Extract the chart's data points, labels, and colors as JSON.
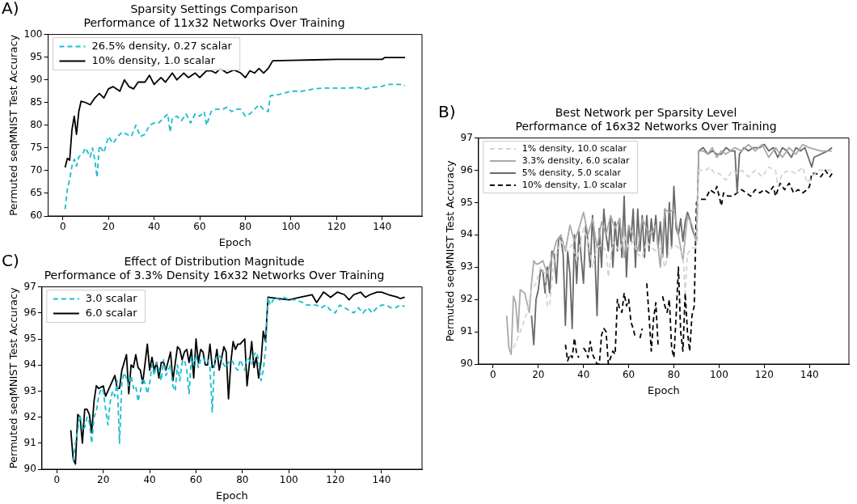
{
  "chart_data": [
    {
      "type": "line",
      "title": "Sparsity Settings Comparison",
      "subtitle": "Performance of 11x32 Networks Over Training",
      "xlabel": "Epoch",
      "ylabel": "Permuted seqMNIST Test Accuracy",
      "annotations": [
        "A)"
      ],
      "xlim": [
        -6.45,
        157.45
      ],
      "xticks": [
        0,
        20,
        40,
        60,
        80,
        100,
        120,
        140
      ],
      "ylim": [
        60,
        100
      ],
      "yticks": [
        60,
        65,
        70,
        75,
        80,
        85,
        90,
        95,
        100
      ],
      "grid": false,
      "legend": "top left",
      "series": [
        {
          "name": "26.5% density, 0.27 scalar",
          "color": "#17becf",
          "line_style": "dashed",
          "x": [
            1,
            2,
            3,
            4,
            5,
            6,
            7,
            9,
            10,
            12,
            13,
            14,
            15,
            16,
            18,
            20,
            22,
            24,
            26,
            28,
            30,
            32,
            34,
            36,
            38,
            40,
            42,
            44,
            46,
            47,
            48,
            50,
            52,
            54,
            56,
            58,
            60,
            62,
            63,
            65,
            67,
            70,
            72,
            74,
            76,
            78,
            80,
            82,
            84,
            86,
            88,
            90,
            91,
            95,
            100,
            105,
            110,
            115,
            120,
            125,
            130,
            132,
            135,
            140,
            142,
            148,
            150
          ],
          "values": [
            61.5,
            66,
            68,
            71,
            72.5,
            71,
            73,
            74,
            75,
            73,
            75,
            72.5,
            68.5,
            75.5,
            74,
            77.5,
            76,
            77.5,
            78.5,
            78,
            77.5,
            80,
            77.5,
            78,
            80,
            80.5,
            80.5,
            81.5,
            82.5,
            78.5,
            81.5,
            82,
            81,
            82.5,
            80.5,
            82.5,
            82,
            83,
            80,
            83,
            83.5,
            83.5,
            84,
            83,
            83.5,
            83.5,
            82,
            82.5,
            83.5,
            84.5,
            83.5,
            83,
            86.5,
            86.8,
            87.5,
            87.5,
            88,
            88.2,
            88.2,
            88.2,
            88.3,
            87.9,
            88.3,
            88.6,
            89,
            89,
            88.7
          ]
        },
        {
          "name": "10% density, 1.0 scalar",
          "color": "#000000",
          "line_style": "solid",
          "x": [
            1,
            2,
            3,
            4,
            5,
            6,
            7,
            8,
            10,
            12,
            14,
            16,
            18,
            20,
            22,
            25,
            27,
            29,
            31,
            33,
            36,
            38,
            40,
            43,
            45,
            48,
            50,
            53,
            55,
            58,
            60,
            63,
            65,
            67,
            69,
            72,
            75,
            78,
            80,
            82,
            84,
            86,
            88,
            90,
            92,
            100,
            110,
            120,
            130,
            140,
            141,
            150
          ],
          "values": [
            70.7,
            72.7,
            72.3,
            79,
            82,
            78,
            83,
            85.3,
            85,
            84.5,
            86,
            87,
            86,
            88,
            88.5,
            87.5,
            90,
            88.5,
            88,
            89.5,
            89.5,
            91,
            89,
            90.5,
            89.5,
            91.5,
            90,
            91.5,
            90.5,
            91.5,
            90.5,
            92,
            92,
            91.5,
            92.5,
            91.5,
            92.2,
            91.5,
            90.5,
            92,
            91.5,
            92.5,
            91.5,
            92.5,
            94.2,
            94.3,
            94.4,
            94.5,
            94.5,
            94.5,
            94.9,
            94.9
          ]
        }
      ]
    },
    {
      "type": "line",
      "title": "Best Network per Sparsity Level",
      "subtitle": "Performance of 16x32 Networks Over Training",
      "xlabel": "Epoch",
      "ylabel": "Permuted seqMNIST Test Accuracy",
      "annotations": [
        "B)"
      ],
      "xlim": [
        -6.45,
        157.45
      ],
      "xticks": [
        0,
        20,
        40,
        60,
        80,
        100,
        120,
        140
      ],
      "ylim": [
        90,
        97
      ],
      "yticks": [
        90,
        91,
        92,
        93,
        94,
        95,
        96,
        97
      ],
      "grid": false,
      "legend": "top left",
      "series": [
        {
          "name": "1% density, 10.0 scalar",
          "color": "#d3d3d3",
          "line_style": "dashed",
          "x": [
            9,
            12,
            15,
            17,
            19,
            21,
            23,
            24,
            25,
            27,
            30,
            33,
            35,
            37,
            40,
            42,
            44,
            46,
            48,
            50,
            51,
            53,
            56,
            58,
            60,
            62,
            64,
            66,
            68,
            70,
            72,
            74,
            76,
            78,
            80,
            82,
            84,
            85,
            86,
            88,
            90,
            91,
            94,
            96,
            98,
            100,
            103,
            106,
            108,
            110,
            113,
            116,
            119,
            122,
            125,
            126,
            128,
            131,
            134,
            137,
            139,
            141,
            144,
            147,
            150
          ],
          "values": [
            90.5,
            91,
            91.6,
            92.3,
            92.5,
            93,
            92.8,
            91.8,
            91.8,
            93.2,
            93.8,
            93.5,
            93.7,
            93.2,
            94.2,
            93.8,
            93,
            93.6,
            93.7,
            93.5,
            92.7,
            93.8,
            93.5,
            94,
            93.6,
            93.8,
            93.4,
            93.3,
            93.8,
            93.6,
            93.5,
            93.6,
            93,
            93.5,
            93.7,
            93.6,
            93.4,
            92.2,
            93.4,
            93.6,
            93.6,
            96,
            96,
            96.1,
            95.9,
            95.9,
            95.7,
            96,
            95.9,
            96,
            95.8,
            96,
            95.8,
            96.1,
            96,
            95.5,
            95.9,
            96,
            95.9,
            96.1,
            95.6,
            95.8,
            96,
            96,
            96
          ]
        },
        {
          "name": "3.3% density, 6.0 scalar",
          "color": "#a9a9a9",
          "line_style": "solid",
          "x": [
            6,
            7,
            8,
            9,
            10,
            11,
            12,
            14,
            15,
            16,
            17,
            18,
            19,
            20,
            22,
            24,
            26,
            28,
            30,
            32,
            34,
            36,
            38,
            40,
            42,
            44,
            46,
            48,
            50,
            52,
            54,
            56,
            58,
            60,
            62,
            64,
            66,
            68,
            70,
            72,
            74,
            76,
            78,
            80,
            82,
            84,
            86,
            88,
            90,
            91,
            93,
            95,
            97,
            99,
            101,
            103,
            105,
            107,
            110,
            113,
            116,
            119,
            122,
            125,
            128,
            131,
            134,
            137,
            140,
            145,
            150
          ],
          "values": [
            91.5,
            90.5,
            90.3,
            92.1,
            91.9,
            91,
            92.3,
            92.2,
            91.9,
            91.6,
            92.5,
            93.2,
            93.1,
            93.1,
            93.2,
            92.8,
            93.3,
            93.8,
            94,
            93.5,
            94.3,
            93.8,
            94.2,
            94.7,
            94,
            94.5,
            93.6,
            94.4,
            94,
            94.6,
            94.2,
            94.5,
            93.3,
            94.3,
            94,
            93.5,
            94.5,
            94.2,
            94,
            94.3,
            93,
            94.8,
            94.7,
            94.8,
            94,
            93.2,
            94.6,
            94.3,
            93.8,
            96.6,
            96.6,
            96.5,
            96.7,
            96.4,
            96.6,
            96.5,
            96.6,
            96.7,
            96.6,
            96.8,
            96.6,
            96.8,
            96.4,
            96.7,
            96.4,
            96.7,
            96.5,
            96.8,
            96.7,
            96.6,
            96.6
          ]
        },
        {
          "name": "5% density, 5.0 scalar",
          "color": "#696969",
          "line_style": "solid",
          "x": [
            17,
            18,
            19,
            20,
            21,
            22,
            23,
            24,
            25,
            26,
            27,
            28,
            29,
            30,
            31,
            32,
            33,
            34,
            35,
            36,
            37,
            38,
            40,
            41,
            42,
            43,
            44,
            45,
            46,
            47,
            48,
            49,
            50,
            51,
            52,
            53,
            54,
            55,
            56,
            57,
            58,
            59,
            60,
            61,
            62,
            63,
            64,
            65,
            66,
            67,
            68,
            69,
            70,
            71,
            72,
            73,
            74,
            75,
            76,
            77,
            78,
            79,
            80,
            81,
            82,
            83,
            84,
            85,
            86,
            87,
            88,
            90,
            91,
            93,
            95,
            97,
            99,
            101,
            103,
            105,
            107,
            108,
            109,
            111,
            113,
            115,
            118,
            120,
            122,
            124,
            126,
            128,
            130,
            132,
            134,
            136,
            138,
            140,
            141,
            142,
            145,
            148,
            150
          ],
          "values": [
            91.5,
            90.6,
            92,
            92.3,
            92.9,
            92.9,
            92.2,
            93,
            92.2,
            93.5,
            93.4,
            92.5,
            93.9,
            93.9,
            93.4,
            91.2,
            93.5,
            92.8,
            91.1,
            94,
            92.5,
            94.1,
            92.5,
            94.3,
            93.8,
            93,
            94.6,
            93.5,
            91.5,
            94.2,
            93,
            94.8,
            94,
            93.5,
            94.5,
            93,
            94.4,
            93.5,
            94.5,
            93.3,
            95.2,
            92.7,
            94.2,
            93.8,
            94.8,
            93,
            94.8,
            93.5,
            94.6,
            93.3,
            94.6,
            93.5,
            94.5,
            93.8,
            94.6,
            93.6,
            94.4,
            93.3,
            94.8,
            93.3,
            95,
            93.6,
            95.5,
            94.2,
            94,
            94.5,
            93.8,
            94.4,
            94.7,
            94.5,
            94.2,
            93.8,
            96.6,
            96.7,
            96.5,
            96.6,
            96.5,
            96.5,
            96.7,
            96.6,
            96.6,
            95.3,
            96.5,
            96.7,
            96.6,
            96.7,
            96.7,
            96.8,
            96.6,
            96.7,
            96.4,
            96.7,
            96.6,
            96.4,
            96.7,
            96.6,
            96.7,
            96.3,
            96.1,
            96.4,
            96.5,
            96.6,
            96.7
          ]
        },
        {
          "name": "10% density, 1.0 scalar",
          "color": "#000000",
          "line_style": "dashed",
          "x": [
            32,
            33,
            34,
            35,
            36,
            37,
            38,
            39,
            40,
            41,
            42,
            43,
            44,
            46,
            47,
            48,
            49,
            50,
            51,
            53,
            54,
            55,
            56,
            57,
            58,
            59,
            60,
            61,
            62,
            63,
            64,
            65,
            66,
            67,
            68,
            69,
            70,
            71,
            72,
            73,
            74,
            75,
            76,
            77,
            78,
            79,
            80,
            81,
            82,
            83,
            84,
            85,
            86,
            87,
            88,
            89,
            90,
            92,
            94,
            96,
            98,
            99,
            100,
            101,
            102,
            104,
            106,
            108,
            110,
            112,
            114,
            116,
            118,
            120,
            122,
            124,
            125,
            127,
            129,
            131,
            133,
            135,
            137,
            139,
            140,
            141,
            143,
            145,
            147,
            149,
            150
          ],
          "values": [
            90.6,
            90.1,
            90.3,
            90.2,
            90.8,
            90.3,
            90.2,
            null,
            90.5,
            90.4,
            90.2,
            90.7,
            90.3,
            90,
            90,
            90.9,
            91.1,
            91,
            90,
            90.4,
            90.3,
            92,
            91.7,
            91.6,
            92.2,
            91.8,
            92,
            91.3,
            91.1,
            90.8,
            null,
            90.8,
            91.1,
            null,
            92.5,
            91.5,
            90.4,
            91.4,
            91.9,
            90.6,
            null,
            92.1,
            91.8,
            91.6,
            92,
            90.5,
            90.2,
            91.5,
            93,
            91,
            90.4,
            92.2,
            91,
            90.4,
            91.5,
            91.8,
            95,
            95.1,
            95.1,
            95.4,
            95.3,
            95.5,
            95.2,
            94.9,
            95.3,
            95.2,
            95.2,
            95.3,
            95.4,
            95.3,
            95.2,
            95.4,
            95.3,
            95.4,
            95.3,
            95.5,
            95.2,
            95.6,
            95.4,
            95.6,
            95.3,
            95.4,
            95.3,
            95.4,
            95.5,
            95.9,
            95.9,
            95.8,
            96,
            95.8,
            95.9
          ]
        }
      ]
    },
    {
      "type": "line",
      "title": "Effect of Distribution Magnitude",
      "subtitle": "Performance of 3.3% Density 16x32 Networks Over Training",
      "xlabel": "Epoch",
      "ylabel": "Permuted seqMNIST Test Accuracy",
      "annotations": [
        "C)"
      ],
      "xlim": [
        -6.45,
        157.45
      ],
      "xticks": [
        0,
        20,
        40,
        60,
        80,
        100,
        120,
        140
      ],
      "ylim": [
        90,
        97
      ],
      "yticks": [
        90,
        91,
        92,
        93,
        94,
        95,
        96,
        97
      ],
      "grid": false,
      "legend": "top left",
      "series": [
        {
          "name": "3.0 scalar",
          "color": "#17becf",
          "line_style": "dashed",
          "x": [
            7,
            8,
            9,
            10,
            11,
            12,
            13,
            14,
            15,
            16,
            17,
            18,
            19,
            20,
            21,
            22,
            23,
            24,
            25,
            26,
            27,
            28,
            29,
            30,
            31,
            32,
            33,
            34,
            35,
            36,
            37,
            38,
            39,
            40,
            41,
            42,
            43,
            44,
            45,
            46,
            47,
            48,
            49,
            50,
            51,
            52,
            53,
            54,
            55,
            56,
            57,
            58,
            59,
            60,
            61,
            62,
            63,
            64,
            65,
            66,
            67,
            68,
            69,
            70,
            71,
            72,
            73,
            74,
            75,
            76,
            77,
            78,
            79,
            80,
            81,
            82,
            83,
            84,
            85,
            86,
            87,
            88,
            89,
            90,
            91,
            92,
            94,
            96,
            98,
            100,
            103,
            106,
            108,
            110,
            112,
            114,
            116,
            118,
            120,
            122,
            124,
            126,
            128,
            130,
            132,
            134,
            136,
            138,
            140,
            142,
            144,
            146,
            148,
            150
          ],
          "values": [
            90.3,
            91,
            91.5,
            92.1,
            91.5,
            91.6,
            92,
            91.8,
            91,
            92,
            92.2,
            92.8,
            93.1,
            93,
            92.3,
            91.7,
            92.6,
            93,
            92.8,
            93.4,
            91,
            93.3,
            93.7,
            93.5,
            93.2,
            93.6,
            93.1,
            93.2,
            92.6,
            93,
            93.5,
            93.3,
            92.9,
            93.3,
            94,
            93.6,
            94.1,
            93.8,
            93.4,
            94.2,
            93.6,
            93.8,
            94,
            93.2,
            93,
            94,
            93.4,
            94.1,
            94.2,
            93.8,
            92.9,
            94.3,
            94,
            94.4,
            93.9,
            94.2,
            94.3,
            94.1,
            94.2,
            93.9,
            92.2,
            94.2,
            94.3,
            94.4,
            94.2,
            94,
            93.9,
            94.1,
            94.2,
            94.1,
            93.9,
            93.8,
            94.2,
            94,
            93.8,
            94.3,
            94.2,
            94,
            94.4,
            94.5,
            94.2,
            93.4,
            93.8,
            94.6,
            96.6,
            96.3,
            96.6,
            96.5,
            96.6,
            96.5,
            96.5,
            96.4,
            96.3,
            96.3,
            96.3,
            96.2,
            96.3,
            96.1,
            96,
            96.3,
            96.2,
            96.1,
            96,
            96.2,
            96,
            96.2,
            96,
            96.2,
            96.3,
            96.3,
            96.2,
            96.2,
            96.3,
            96.25
          ]
        },
        {
          "name": "6.0 scalar",
          "color": "#000000",
          "line_style": "solid",
          "x": [
            6,
            7,
            8,
            9,
            10,
            11,
            12,
            13,
            14,
            15,
            16,
            17,
            18,
            20,
            21,
            23,
            25,
            26,
            27,
            28,
            30,
            31,
            32,
            33,
            34,
            35,
            36,
            37,
            39,
            40,
            41,
            42,
            43,
            44,
            45,
            46,
            47,
            49,
            50,
            52,
            53,
            54,
            55,
            56,
            57,
            58,
            59,
            60,
            61,
            62,
            63,
            64,
            65,
            66,
            67,
            68,
            69,
            70,
            72,
            73,
            74,
            75,
            76,
            77,
            78,
            79,
            81,
            82,
            84,
            85,
            86,
            87,
            88,
            89,
            90,
            91,
            100,
            105,
            110,
            112,
            115,
            118,
            121,
            124,
            126,
            128,
            131,
            133,
            135,
            138,
            140,
            143,
            147,
            148,
            150
          ],
          "values": [
            91.5,
            90.4,
            90.2,
            92.1,
            92,
            91,
            92.3,
            92.3,
            92.1,
            91.4,
            92.6,
            93.2,
            93.1,
            93.2,
            92.8,
            93.2,
            93.6,
            93.1,
            93.1,
            93.8,
            94.4,
            92.9,
            94,
            93.9,
            94.4,
            93.9,
            93.8,
            93.3,
            94.8,
            93.8,
            94.3,
            93.8,
            94.1,
            93.5,
            94.1,
            94.1,
            93.8,
            94.5,
            93.4,
            94.7,
            94.6,
            94.2,
            94.5,
            94.6,
            94.1,
            94.6,
            93.5,
            95,
            94.1,
            94.6,
            94.5,
            94,
            94,
            94.8,
            93.9,
            94,
            94.6,
            93.8,
            94.7,
            94.5,
            92.7,
            94.1,
            94.9,
            94.6,
            94.8,
            94.8,
            95,
            93.2,
            94.9,
            93.9,
            94.3,
            93.5,
            94.1,
            95.3,
            94.9,
            96.6,
            96.5,
            96.6,
            96.7,
            96.4,
            96.8,
            96.6,
            96.8,
            96.7,
            96.5,
            96.7,
            96.8,
            96.6,
            96.7,
            96.8,
            96.8,
            96.7,
            96.6,
            96.55,
            96.6
          ]
        }
      ]
    }
  ]
}
